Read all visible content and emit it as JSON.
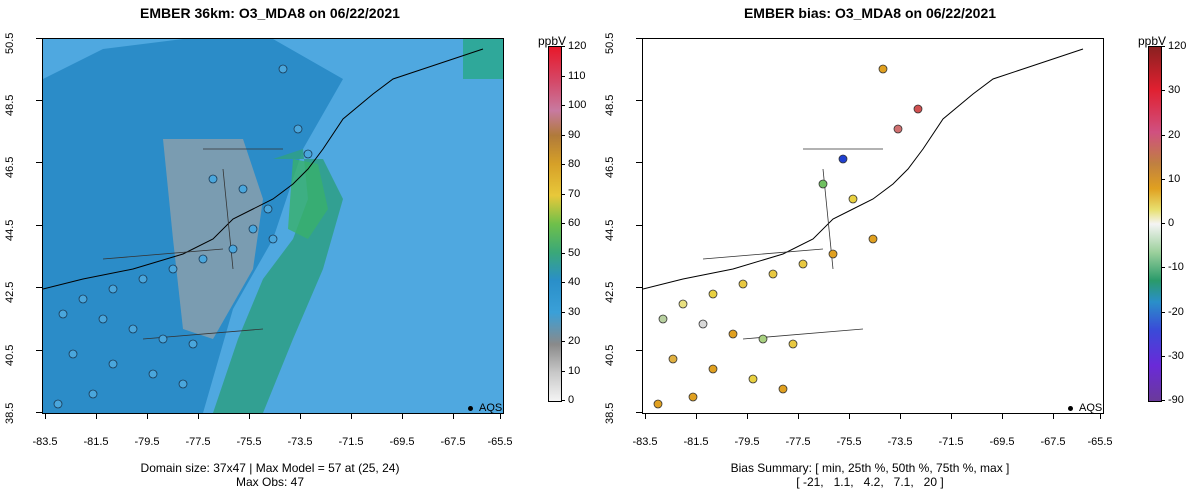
{
  "left_panel": {
    "title": "EMBER 36km: O3_MDA8 on 06/22/2021",
    "x_ticks": [
      "-83.5",
      "-81.5",
      "-79.5",
      "-77.5",
      "-75.5",
      "-73.5",
      "-71.5",
      "-69.5",
      "-67.5",
      "-65.5"
    ],
    "y_ticks": [
      "50.5",
      "48.5",
      "46.5",
      "44.5",
      "42.5",
      "40.5",
      "38.5"
    ],
    "legend_marker": "AQS",
    "colorbar": {
      "unit": "ppbV",
      "labels": [
        "120",
        "110",
        "100",
        "90",
        "80",
        "70",
        "60",
        "50",
        "40",
        "30",
        "20",
        "10",
        "0"
      ],
      "range": [
        0,
        120
      ]
    },
    "footer_line1": "Domain size: 37x47 | Max Model = 57 at (25, 24)",
    "footer_line2": "Max Obs: 47",
    "colors": {
      "ocean": "#4ba6df",
      "land_model": "#2a8fc9",
      "high_model": "#3aa88e",
      "grey_model": "#9aa8b0"
    }
  },
  "right_panel": {
    "title": "EMBER bias: O3_MDA8 on 06/22/2021",
    "x_ticks": [
      "-83.5",
      "-81.5",
      "-79.5",
      "-77.5",
      "-75.5",
      "-73.5",
      "-71.5",
      "-69.5",
      "-67.5",
      "-65.5"
    ],
    "y_ticks": [
      "50.5",
      "48.5",
      "46.5",
      "44.5",
      "42.5",
      "40.5",
      "38.5"
    ],
    "legend_marker": "AQS",
    "colorbar": {
      "unit": "ppbV",
      "labels": [
        "120",
        "30",
        "20",
        "10",
        "0",
        "-10",
        "-20",
        "-30",
        "-90"
      ]
    },
    "footer_line1": "Bias Summary: [ min, 25th %, 50th %, 75th %, max ]",
    "footer_line2": "[ -21,   1.1,   4.2,   7.1,   20 ]"
  }
}
